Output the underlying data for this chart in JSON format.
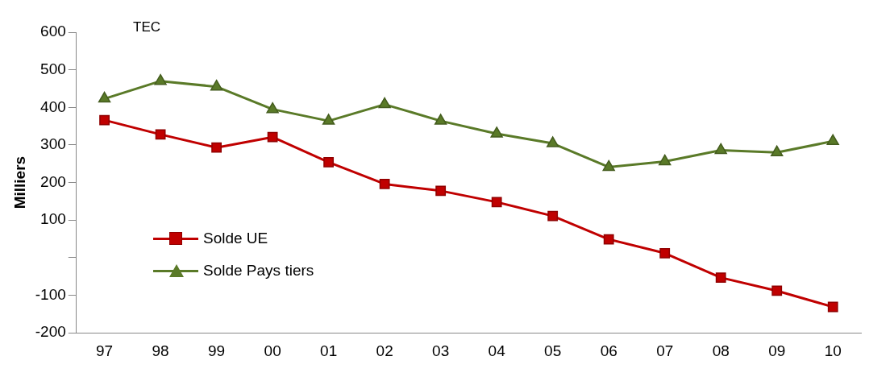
{
  "chart_data": {
    "type": "line",
    "ylabel": "Milliers",
    "annotations": [
      "TEC"
    ],
    "categories": [
      "97",
      "98",
      "99",
      "00",
      "01",
      "02",
      "03",
      "04",
      "05",
      "06",
      "07",
      "08",
      "09",
      "10"
    ],
    "series": [
      {
        "name": "Solde UE",
        "color": "#c00000",
        "marker": "square",
        "values": [
          366,
          328,
          293,
          321,
          254,
          196,
          178,
          148,
          111,
          49,
          12,
          -53,
          -88,
          -131
        ]
      },
      {
        "name": "Solde Pays tiers",
        "color": "#5a7a28",
        "marker": "triangle",
        "values": [
          423,
          470,
          455,
          395,
          364,
          408,
          364,
          330,
          304,
          241,
          256,
          286,
          280,
          310
        ]
      }
    ],
    "ylim": [
      -200,
      600
    ],
    "yticks": [
      -200,
      -100,
      {
        "value": 0,
        "label": null
      },
      100,
      200,
      300,
      400,
      500,
      600
    ],
    "grid": false,
    "legend": "center left",
    "line_style": "solid"
  }
}
